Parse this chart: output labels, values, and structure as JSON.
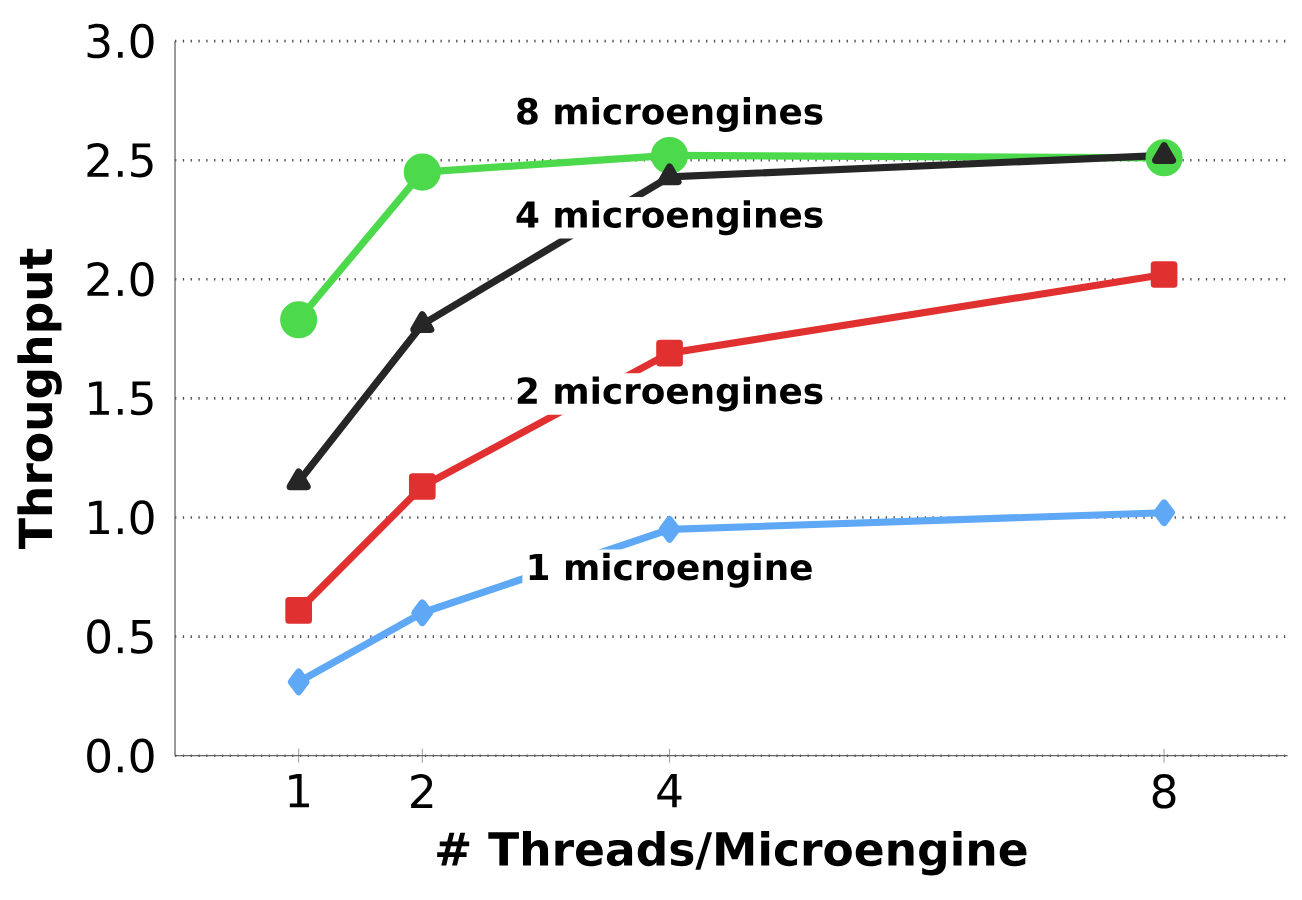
{
  "chart_data": {
    "type": "line",
    "xlabel": "# Threads/Microengine",
    "ylabel": "Throughput",
    "x": [
      1,
      2,
      4,
      8
    ],
    "xlim": [
      0,
      9
    ],
    "xticks": [
      1,
      2,
      4,
      8
    ],
    "ylim": [
      0,
      3
    ],
    "yticks": [
      {
        "value": 0,
        "label": "0.0"
      },
      {
        "value": 0.5,
        "label": "0.5"
      },
      {
        "value": 1,
        "label": "1.0"
      },
      {
        "value": 1.5,
        "label": "1.5"
      },
      {
        "value": 2,
        "label": "2.0"
      },
      {
        "value": 2.5,
        "label": "2.5"
      },
      {
        "value": 3,
        "label": "3.0"
      }
    ],
    "grid": "y",
    "legend": false,
    "series": [
      {
        "name": "8 microengines",
        "color": "#4cd94c",
        "marker": "circle",
        "values": [
          1.83,
          2.45,
          2.52,
          2.51
        ]
      },
      {
        "name": "4 microengines",
        "color": "#262626",
        "marker": "triangle",
        "values": [
          1.15,
          1.81,
          2.43,
          2.52
        ]
      },
      {
        "name": "2 microengines",
        "color": "#e03030",
        "marker": "square",
        "values": [
          0.61,
          1.13,
          1.69,
          2.02
        ]
      },
      {
        "name": "1 microengine",
        "color": "#5fa8f5",
        "marker": "diamond",
        "values": [
          0.31,
          0.6,
          0.95,
          1.02
        ]
      }
    ]
  }
}
